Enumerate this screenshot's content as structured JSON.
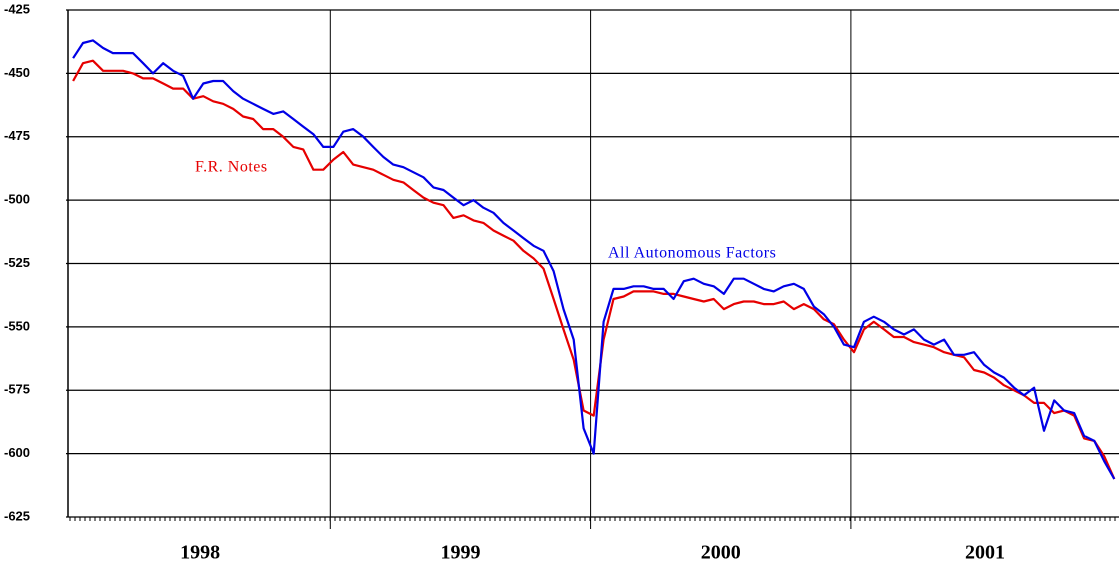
{
  "chart_data": {
    "type": "line",
    "x": [
      1998.012,
      1998.05,
      1998.088,
      1998.127,
      1998.165,
      1998.204,
      1998.242,
      1998.281,
      1998.319,
      1998.358,
      1998.396,
      1998.435,
      1998.473,
      1998.512,
      1998.55,
      1998.588,
      1998.627,
      1998.665,
      1998.704,
      1998.742,
      1998.781,
      1998.819,
      1998.858,
      1998.896,
      1998.935,
      1998.973,
      1999.012,
      1999.05,
      1999.088,
      1999.127,
      1999.165,
      1999.204,
      1999.242,
      1999.281,
      1999.319,
      1999.358,
      1999.396,
      1999.435,
      1999.473,
      1999.512,
      1999.55,
      1999.588,
      1999.627,
      1999.665,
      1999.704,
      1999.742,
      1999.781,
      1999.819,
      1999.858,
      1999.896,
      1999.935,
      1999.973,
      2000.012,
      2000.05,
      2000.088,
      2000.127,
      2000.165,
      2000.204,
      2000.242,
      2000.281,
      2000.319,
      2000.358,
      2000.396,
      2000.435,
      2000.473,
      2000.512,
      2000.55,
      2000.588,
      2000.627,
      2000.665,
      2000.704,
      2000.742,
      2000.781,
      2000.819,
      2000.858,
      2000.896,
      2000.935,
      2000.973,
      2001.012,
      2001.05,
      2001.088,
      2001.127,
      2001.165,
      2001.204,
      2001.242,
      2001.281,
      2001.319,
      2001.358,
      2001.396,
      2001.435,
      2001.473,
      2001.512,
      2001.55,
      2001.588,
      2001.627,
      2001.665,
      2001.704,
      2001.742,
      2001.781,
      2001.819,
      2001.858,
      2001.896,
      2001.935,
      2001.973,
      2002.012
    ],
    "series": [
      {
        "name": "All Autonomous Factors",
        "color": "#0000e6",
        "values": [
          -444,
          -438,
          -437,
          -440,
          -442,
          -442,
          -442,
          -446,
          -450,
          -446,
          -449,
          -451,
          -460,
          -454,
          -453,
          -453,
          -457,
          -460,
          -462,
          -464,
          -466,
          -465,
          -468,
          -471,
          -474,
          -479,
          -479,
          -473,
          -472,
          -475,
          -479,
          -483,
          -486,
          -487,
          -489,
          -491,
          -495,
          -496,
          -499,
          -502,
          -500,
          -503,
          -505,
          -509,
          -512,
          -515,
          -518,
          -520,
          -528,
          -543,
          -555,
          -590,
          -600,
          -548,
          -535,
          -535,
          -534,
          -534,
          -535,
          -535,
          -539,
          -532,
          -531,
          -533,
          -534,
          -537,
          -531,
          -531,
          -533,
          -535,
          -536,
          -534,
          -533,
          -535,
          -542,
          -545,
          -550,
          -557,
          -558,
          -548,
          -546,
          -548,
          -551,
          -553,
          -551,
          -555,
          -557,
          -555,
          -561,
          -561,
          -560,
          -565,
          -568,
          -570,
          -574,
          -577,
          -574,
          -591,
          -579,
          -583,
          -584,
          -593,
          -595,
          -603,
          -610
        ]
      },
      {
        "name": "F.R. Notes",
        "color": "#e60000",
        "values": [
          -453,
          -446,
          -445,
          -449,
          -449,
          -449,
          -450,
          -452,
          -452,
          -454,
          -456,
          -456,
          -460,
          -459,
          -461,
          -462,
          -464,
          -467,
          -468,
          -472,
          -472,
          -475,
          -479,
          -480,
          -488,
          -488,
          -484,
          -481,
          -486,
          -487,
          -488,
          -490,
          -492,
          -493,
          -496,
          -499,
          -501,
          -502,
          -507,
          -506,
          -508,
          -509,
          -512,
          -514,
          -516,
          -520,
          -523,
          -527,
          -539,
          -551,
          -563,
          -583,
          -585,
          -555,
          -539,
          -538,
          -536,
          -536,
          -536,
          -537,
          -537,
          -538,
          -539,
          -540,
          -539,
          -543,
          -541,
          -540,
          -540,
          -541,
          -541,
          -540,
          -543,
          -541,
          -543,
          -547,
          -549,
          -555,
          -560,
          -551,
          -548,
          -551,
          -554,
          -554,
          -556,
          -557,
          -558,
          -560,
          -561,
          -562,
          -567,
          -568,
          -570,
          -573,
          -575,
          -577,
          -580,
          -580,
          -584,
          -583,
          -585,
          -594,
          -595,
          -601,
          -610
        ]
      }
    ],
    "xlim": [
      1998,
      2002.03
    ],
    "xticks": [
      {
        "value": 1998,
        "label": "1998"
      },
      {
        "value": 1999,
        "label": "1999"
      },
      {
        "value": 2000,
        "label": "2000"
      },
      {
        "value": 2001,
        "label": "2001"
      }
    ],
    "ylim": [
      -625,
      -425
    ],
    "yticks": [
      -625,
      -600,
      -575,
      -550,
      -525,
      -500,
      -475,
      -450,
      -425
    ],
    "grid": true
  }
}
